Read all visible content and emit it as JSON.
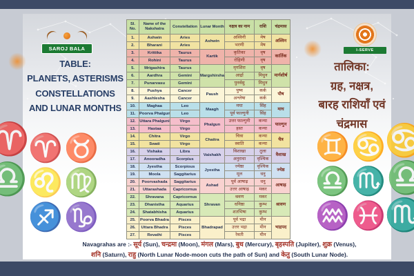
{
  "logos": {
    "left": {
      "label": "SAROJ BALA"
    },
    "right": {
      "label": "I-SERVE"
    }
  },
  "left_title": {
    "lines": [
      "TABLE:",
      "PLANETS, ASTERISMS",
      "CONSTELLATIONS",
      "AND LUNAR MONTHS"
    ]
  },
  "right_title": {
    "lines": [
      "तालिका:",
      "ग्रह, नक्षत्र,",
      "बारह राशियाँ एवं",
      "चंद्रमास"
    ]
  },
  "colors": {
    "top_bar": "#3c4a66",
    "bottom_bar": "#3c4a66",
    "header_green": "#c9e0a6",
    "accent_green": "#1c7a33",
    "accent_orange": "#e2761b",
    "title_navy": "#273e66",
    "title_maroon": "#713626",
    "hindi_red": "#a43328"
  },
  "table": {
    "headers": [
      "Sl. No.",
      "Name of the Nakshatra",
      "Constellation",
      "Lunar Month",
      "नक्षत्र का नाम",
      "राशि",
      "चंद्रमास"
    ],
    "rows": [
      {
        "no": "1.",
        "name": "Ashwin",
        "con": "Aries",
        "hname": "अश्विनी",
        "rashi": "मेष"
      },
      {
        "no": "2.",
        "name": "Bharani",
        "con": "Aries",
        "hname": "भरणी",
        "rashi": "मेष"
      },
      {
        "no": "3.",
        "name": "Krittika",
        "con": "Taurus",
        "hname": "कृतिका",
        "rashi": "वृष"
      },
      {
        "no": "4.",
        "name": "Rohini",
        "con": "Taurus",
        "hname": "रोहिणी",
        "rashi": "वृष"
      },
      {
        "no": "5.",
        "name": "Mrigashira",
        "con": "Taurus",
        "hname": "मृगशिरा",
        "rashi": "वृष"
      },
      {
        "no": "6.",
        "name": "Aardhra",
        "con": "Gemini",
        "hname": "आर्द्रा",
        "rashi": "मिथुन"
      },
      {
        "no": "7.",
        "name": "Punarvasu",
        "con": "Gemini",
        "hname": "पुनर्वसु",
        "rashi": "मिथुन"
      },
      {
        "no": "8.",
        "name": "Pushya",
        "con": "Cancer",
        "hname": "पुष्य",
        "rashi": "कर्क"
      },
      {
        "no": "9.",
        "name": "Aashlesha",
        "con": "Cancer",
        "hname": "अश्लेषा",
        "rashi": "कर्क"
      },
      {
        "no": "10.",
        "name": "Maghaa",
        "con": "Leo",
        "hname": "मघा",
        "rashi": "सिंह"
      },
      {
        "no": "11.",
        "name": "Poorva Phalguni",
        "con": "Leo",
        "hname": "पूर्व फाल्गुनी",
        "rashi": "सिंह"
      },
      {
        "no": "12.",
        "name": "Uttara Phalguni",
        "con": "Virgo",
        "hname": "उत्तर फाल्गुनी",
        "rashi": "कन्या"
      },
      {
        "no": "13.",
        "name": "Hastaa",
        "con": "Virgo",
        "hname": "हस्त",
        "rashi": "कन्या"
      },
      {
        "no": "14.",
        "name": "Chitra",
        "con": "Virgo",
        "hname": "चित्रा",
        "rashi": "कन्या"
      },
      {
        "no": "15.",
        "name": "Swati",
        "con": "Virgo",
        "hname": "स्वाति",
        "rashi": "कन्या"
      },
      {
        "no": "16.",
        "name": "Vishaka",
        "con": "Libra",
        "hname": "विशाखा",
        "rashi": "तुला"
      },
      {
        "no": "17.",
        "name": "Anooradha",
        "con": "Scorpius",
        "hname": "अनुराधा",
        "rashi": "वृश्चिक"
      },
      {
        "no": "18.",
        "name": "Jyestha",
        "con": "Scorpious",
        "hname": "ज्येष्ठा",
        "rashi": "वृश्चिक"
      },
      {
        "no": "19.",
        "name": "Moola",
        "con": "Saggitarius",
        "hname": "मूल",
        "rashi": "धनु"
      },
      {
        "no": "20.",
        "name": "Poorvashada",
        "con": "Saggitarius",
        "hname": "पूर्व आषाढ़",
        "rashi": "धनु"
      },
      {
        "no": "21.",
        "name": "Uttarashada",
        "con": "Capricornus",
        "hname": "उत्तर आषाढ़",
        "rashi": "मकर"
      },
      {
        "no": "22.",
        "name": "Shravana",
        "con": "Capricornus",
        "hname": "श्रवण",
        "rashi": "मकर"
      },
      {
        "no": "23.",
        "name": "Dhanistha",
        "con": "Aquarius",
        "hname": "धनिष्ठा",
        "rashi": "कुम्भ"
      },
      {
        "no": "24.",
        "name": "Shatabhisha",
        "con": "Aquarius",
        "hname": "शतभिषा",
        "rashi": "कुम्भ"
      },
      {
        "no": "25.",
        "name": "Poorva Bhadra",
        "con": "Pisces",
        "hname": "पूर्व भद्रा",
        "rashi": "मीन"
      },
      {
        "no": "26.",
        "name": "Uttara Bhadra",
        "con": "Pisces",
        "hname": "उत्तर भद्रा",
        "rashi": "मीन"
      },
      {
        "no": "27.",
        "name": "Revathi",
        "con": "Pisces",
        "hname": "रेवती",
        "rashi": "मीन"
      }
    ],
    "groups": [
      {
        "month": "Ashwin",
        "hindi": "अश्विन",
        "rows": [
          1,
          2
        ],
        "color": "#f1e3a2"
      },
      {
        "month": "Kartik",
        "hindi": "कार्तिक",
        "rows": [
          3,
          4
        ],
        "color": "#efb3aa"
      },
      {
        "month": "Margshirsha",
        "hindi": "मार्गशीर्ष",
        "rows": [
          5,
          6,
          7
        ],
        "color": "#cfe2a9"
      },
      {
        "month": "Paush",
        "hindi": "पौष",
        "rows": [
          8,
          9
        ],
        "color": "#fbf5d8"
      },
      {
        "month": "Maagh",
        "hindi": "माघ",
        "rows": [
          10,
          11
        ],
        "color": "#b9dfe9"
      },
      {
        "month": "Phalgun",
        "hindi": "फाल्गुन",
        "rows": [
          12,
          13
        ],
        "color": "#f5becb"
      },
      {
        "month": "Chaitra",
        "hindi": "चैत्र",
        "rows": [
          14,
          15
        ],
        "color": "#f2e3a0"
      },
      {
        "month": "Vaishakh",
        "hindi": "वैशाख",
        "rows": [
          16,
          17
        ],
        "color": "#d7d1ea"
      },
      {
        "month": "Jyestha",
        "hindi": "ज्येष्ठ",
        "rows": [
          18,
          19
        ],
        "color": "#cfe1f2"
      },
      {
        "month": "Ashad",
        "hindi": "आषाढ़",
        "rows": [
          20,
          21
        ],
        "color": "#f9d2d0"
      },
      {
        "month": "Shravan",
        "hindi": "श्रावण",
        "rows": [
          22,
          23,
          24
        ],
        "color": "#d7e9b7"
      },
      {
        "month": "Bhadrapad",
        "hindi": "भाद्रपद",
        "rows": [
          25,
          26,
          27
        ],
        "color": "#faf0ca"
      }
    ]
  },
  "footer": {
    "segments": [
      {
        "t": "Navagrahas are :- ",
        "c": "en"
      },
      {
        "t": "सूर्य",
        "c": "hi"
      },
      {
        "t": " (Sun), ",
        "c": "en"
      },
      {
        "t": "चन्द्रमा",
        "c": "hi"
      },
      {
        "t": " (Moon), ",
        "c": "en"
      },
      {
        "t": "मंगल",
        "c": "hi"
      },
      {
        "t": " (Mars), ",
        "c": "en"
      },
      {
        "t": "बुध",
        "c": "hi"
      },
      {
        "t": " (Mercury), ",
        "c": "en"
      },
      {
        "t": "बृहस्पति",
        "c": "hi"
      },
      {
        "t": " (Jupiter), ",
        "c": "en"
      },
      {
        "t": "शुक्र",
        "c": "hi"
      },
      {
        "t": " (Venus),",
        "c": "en"
      },
      {
        "br": true
      },
      {
        "t": "शनि",
        "c": "hi"
      },
      {
        "t": " (Saturn), ",
        "c": "en"
      },
      {
        "t": "राहु",
        "c": "hi"
      },
      {
        "t": " (North Lunar Node-moon cuts the path of Sun) and ",
        "c": "en"
      },
      {
        "t": "केतु",
        "c": "hi"
      },
      {
        "t": " (South Lunar Node).",
        "c": "en"
      }
    ]
  },
  "watermarks": {
    "left": [
      {
        "name": "aries",
        "glyph": "♈"
      },
      {
        "name": "taurus",
        "glyph": "♉"
      },
      {
        "name": "leo",
        "glyph": "♌"
      },
      {
        "name": "virgo",
        "glyph": "♍"
      },
      {
        "name": "sagittarius",
        "glyph": "♐"
      },
      {
        "name": "capricorn",
        "glyph": "♑"
      }
    ],
    "right": [
      {
        "name": "gemini",
        "glyph": "♊"
      },
      {
        "name": "cancer",
        "glyph": "♋"
      },
      {
        "name": "libra",
        "glyph": "♎"
      },
      {
        "name": "scorpio",
        "glyph": "♏"
      },
      {
        "name": "aquarius",
        "glyph": "♒"
      },
      {
        "name": "pisces",
        "glyph": "♓"
      }
    ]
  },
  "edge_icons": {
    "left": [
      {
        "name": "aries-edge-icon",
        "glyph": "♈",
        "color": "#9a6434"
      },
      {
        "name": "libra-edge-icon",
        "glyph": "♎",
        "color": "#d1892f"
      }
    ],
    "right": [
      {
        "name": "cancer-edge-icon",
        "glyph": "♋",
        "color": "#bf5a50"
      },
      {
        "name": "libra-edge-icon",
        "glyph": "♎",
        "color": "#d3a032"
      },
      {
        "name": "scorpio-edge-icon",
        "glyph": "♏",
        "color": "#6486ab"
      }
    ]
  }
}
